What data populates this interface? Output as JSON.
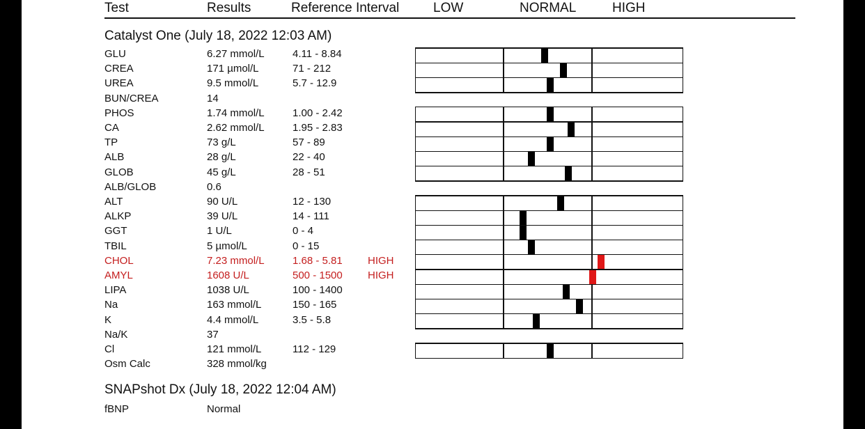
{
  "header": {
    "test": "Test",
    "results": "Results",
    "reference": "Reference Interval",
    "low": "LOW",
    "normal": "NORMAL",
    "high": "HIGH"
  },
  "sections": [
    {
      "title": "Catalyst One (July 18, 2022 12:03 AM)",
      "rows": [
        {
          "test": "GLU",
          "result": "6.27 mmol/L",
          "ref": "4.11 - 8.84",
          "flag": "",
          "marker": 0.48
        },
        {
          "test": "CREA",
          "result": "171 µmol/L",
          "ref": "71 - 212",
          "flag": "",
          "marker": 0.55
        },
        {
          "test": "UREA",
          "result": "9.5 mmol/L",
          "ref": "5.7 - 12.9",
          "flag": "",
          "marker": 0.5
        },
        {
          "test": "BUN/CREA",
          "result": "14",
          "ref": "",
          "flag": ""
        },
        {
          "test": "PHOS",
          "result": "1.74 mmol/L",
          "ref": "1.00 - 2.42",
          "flag": "",
          "marker": 0.5
        },
        {
          "test": "CA",
          "result": "2.62 mmol/L",
          "ref": "1.95 - 2.83",
          "flag": "",
          "marker": 0.58
        },
        {
          "test": "TP",
          "result": "73 g/L",
          "ref": "57 - 89",
          "flag": "",
          "marker": 0.5
        },
        {
          "test": "ALB",
          "result": "28 g/L",
          "ref": "22 - 40",
          "flag": "",
          "marker": 0.43
        },
        {
          "test": "GLOB",
          "result": "45 g/L",
          "ref": "28 - 51",
          "flag": "",
          "marker": 0.57
        },
        {
          "test": "ALB/GLOB",
          "result": "0.6",
          "ref": "",
          "flag": ""
        },
        {
          "test": "ALT",
          "result": "90 U/L",
          "ref": "12 - 130",
          "flag": "",
          "marker": 0.54
        },
        {
          "test": "ALKP",
          "result": "39 U/L",
          "ref": "14 - 111",
          "flag": "",
          "marker": 0.4
        },
        {
          "test": "GGT",
          "result": "1 U/L",
          "ref": "0 - 4",
          "flag": "",
          "marker": 0.4
        },
        {
          "test": "TBIL",
          "result": "5 µmol/L",
          "ref": "0 - 15",
          "flag": "",
          "marker": 0.43
        },
        {
          "test": "CHOL",
          "result": "7.23 mmol/L",
          "ref": "1.68 - 5.81",
          "flag": "HIGH",
          "marker": 0.69
        },
        {
          "test": "AMYL",
          "result": "1608 U/L",
          "ref": "500 - 1500",
          "flag": "HIGH",
          "marker": 0.66
        },
        {
          "test": "LIPA",
          "result": "1038 U/L",
          "ref": "100 - 1400",
          "flag": "",
          "marker": 0.56
        },
        {
          "test": "Na",
          "result": "163 mmol/L",
          "ref": "150 - 165",
          "flag": "",
          "marker": 0.61
        },
        {
          "test": "K",
          "result": "4.4 mmol/L",
          "ref": "3.5 - 5.8",
          "flag": "",
          "marker": 0.45
        },
        {
          "test": "Na/K",
          "result": "37",
          "ref": "",
          "flag": ""
        },
        {
          "test": "Cl",
          "result": "121 mmol/L",
          "ref": "112 - 129",
          "flag": "",
          "marker": 0.5
        },
        {
          "test": "Osm Calc",
          "result": "328 mmol/kg",
          "ref": "",
          "flag": ""
        }
      ]
    },
    {
      "title": "SNAPshot Dx (July 18, 2022 12:04 AM)",
      "rows": [
        {
          "test": "fBNP",
          "result": "Normal",
          "ref": "",
          "flag": ""
        }
      ]
    }
  ],
  "colors": {
    "high_text": "#c41e1e",
    "high_marker": "#e01818",
    "normal_marker": "#000000"
  }
}
